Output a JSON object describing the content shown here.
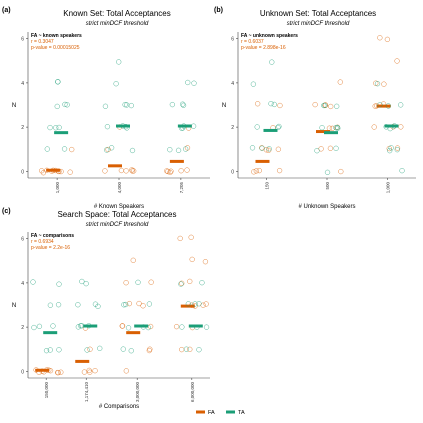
{
  "colors": {
    "FA": "#d95f02",
    "TA": "#1b9e77",
    "text_fa": "#d95f02",
    "panel_bg": "#ffffff",
    "axis": "#444444"
  },
  "legend": {
    "items": [
      "FA",
      "TA"
    ],
    "position": "bottom-center"
  },
  "chart_data": [
    {
      "type": "scatter",
      "panel_tag": "(a)",
      "title": "Known Set: Total Acceptances",
      "subtitle": "strict minDCF threshold",
      "xlabel": "# Known Speakers",
      "ylabel": "N",
      "categories": [
        "1,000",
        "4,000",
        "7,205"
      ],
      "ylim": [
        -0.3,
        6.3
      ],
      "yticks": [
        0,
        2,
        4,
        6
      ],
      "grid": false,
      "stats": {
        "header": "FA ~ known speakers",
        "r": "r = 0.3047",
        "p": "p-value = 0.00015025"
      },
      "series": [
        {
          "name": "FA",
          "points": [
            [
              0,
              0
            ],
            [
              0,
              0
            ],
            [
              0,
              0
            ],
            [
              0,
              0
            ],
            [
              0,
              0
            ],
            [
              0,
              0
            ],
            [
              0,
              0
            ],
            [
              0,
              0
            ],
            [
              0,
              0
            ],
            [
              0,
              0
            ],
            [
              0,
              1
            ],
            [
              1,
              0
            ],
            [
              1,
              0
            ],
            [
              1,
              0
            ],
            [
              1,
              0
            ],
            [
              1,
              0
            ],
            [
              1,
              0
            ],
            [
              1,
              1
            ],
            [
              1,
              2
            ],
            [
              2,
              0
            ],
            [
              2,
              0
            ],
            [
              2,
              0
            ],
            [
              2,
              0
            ],
            [
              2,
              0
            ],
            [
              2,
              0
            ],
            [
              2,
              1
            ],
            [
              2,
              2
            ]
          ],
          "means": [
            0.05,
            0.25,
            0.45
          ]
        },
        {
          "name": "TA",
          "points": [
            [
              0,
              1
            ],
            [
              0,
              1
            ],
            [
              0,
              2
            ],
            [
              0,
              2
            ],
            [
              0,
              2
            ],
            [
              0,
              3
            ],
            [
              0,
              3
            ],
            [
              0,
              3
            ],
            [
              0,
              4
            ],
            [
              0,
              4
            ],
            [
              1,
              1
            ],
            [
              1,
              1
            ],
            [
              1,
              1
            ],
            [
              1,
              2
            ],
            [
              1,
              2
            ],
            [
              1,
              2
            ],
            [
              1,
              2
            ],
            [
              1,
              3
            ],
            [
              1,
              3
            ],
            [
              1,
              3
            ],
            [
              1,
              3
            ],
            [
              1,
              4
            ],
            [
              1,
              5
            ],
            [
              2,
              1
            ],
            [
              2,
              1
            ],
            [
              2,
              1
            ],
            [
              2,
              2
            ],
            [
              2,
              2
            ],
            [
              2,
              2
            ],
            [
              2,
              2
            ],
            [
              2,
              3
            ],
            [
              2,
              3
            ],
            [
              2,
              3
            ],
            [
              2,
              4
            ],
            [
              2,
              4
            ]
          ],
          "means": [
            1.75,
            2.05,
            2.05
          ]
        }
      ]
    },
    {
      "type": "scatter",
      "panel_tag": "(b)",
      "title": "Unknown Set: Total Acceptances",
      "subtitle": "strict minDCF threshold",
      "xlabel": "# Unknown Speakers",
      "ylabel": "N",
      "categories": [
        "150",
        "500",
        "1,000"
      ],
      "ylim": [
        -0.3,
        6.3
      ],
      "yticks": [
        0,
        2,
        4,
        6
      ],
      "grid": false,
      "stats": {
        "header": "FA ~ unknown speakers",
        "r": "r = 0.6037",
        "p": "p-value = 2.898e-16"
      },
      "series": [
        {
          "name": "FA",
          "points": [
            [
              0,
              0
            ],
            [
              0,
              0
            ],
            [
              0,
              0
            ],
            [
              0,
              0
            ],
            [
              0,
              1
            ],
            [
              0,
              1
            ],
            [
              0,
              1
            ],
            [
              0,
              1
            ],
            [
              0,
              2
            ],
            [
              0,
              3
            ],
            [
              0,
              3
            ],
            [
              1,
              0
            ],
            [
              1,
              1
            ],
            [
              1,
              1
            ],
            [
              1,
              2
            ],
            [
              1,
              2
            ],
            [
              1,
              2
            ],
            [
              1,
              3
            ],
            [
              1,
              3
            ],
            [
              1,
              3
            ],
            [
              1,
              3
            ],
            [
              1,
              4
            ],
            [
              2,
              1
            ],
            [
              2,
              1
            ],
            [
              2,
              2
            ],
            [
              2,
              2
            ],
            [
              2,
              2
            ],
            [
              2,
              3
            ],
            [
              2,
              3
            ],
            [
              2,
              3
            ],
            [
              2,
              4
            ],
            [
              2,
              4
            ],
            [
              2,
              5
            ],
            [
              2,
              6
            ],
            [
              2,
              6
            ]
          ],
          "means": [
            0.45,
            1.8,
            2.95
          ]
        },
        {
          "name": "TA",
          "points": [
            [
              0,
              1
            ],
            [
              0,
              1
            ],
            [
              0,
              1
            ],
            [
              0,
              2
            ],
            [
              0,
              2
            ],
            [
              0,
              2
            ],
            [
              0,
              3
            ],
            [
              0,
              3
            ],
            [
              0,
              4
            ],
            [
              0,
              5
            ],
            [
              1,
              0
            ],
            [
              1,
              1
            ],
            [
              1,
              1
            ],
            [
              1,
              2
            ],
            [
              1,
              2
            ],
            [
              1,
              2
            ],
            [
              1,
              2
            ],
            [
              1,
              3
            ],
            [
              1,
              3
            ],
            [
              1,
              3
            ],
            [
              2,
              0
            ],
            [
              2,
              1
            ],
            [
              2,
              1
            ],
            [
              2,
              1
            ],
            [
              2,
              2
            ],
            [
              2,
              2
            ],
            [
              2,
              2
            ],
            [
              2,
              3
            ],
            [
              2,
              3
            ],
            [
              2,
              3
            ],
            [
              2,
              4
            ]
          ],
          "means": [
            1.85,
            1.75,
            2.05
          ]
        }
      ]
    },
    {
      "type": "scatter",
      "panel_tag": "(c)",
      "title": "Search Space: Total Acceptances",
      "subtitle": "strict minDCF threshold",
      "xlabel": "# Comparisons",
      "ylabel": "N",
      "categories": [
        "150,000",
        "1,174,410",
        "3,000,000",
        "6,000,000"
      ],
      "ylim": [
        -0.3,
        6.3
      ],
      "yticks": [
        0,
        2,
        4,
        6
      ],
      "grid": false,
      "stats": {
        "header": "FA ~ comparisons",
        "r": "r = 0.6934",
        "p": "p-value = 2.2e-16"
      },
      "series": [
        {
          "name": "FA",
          "points": [
            [
              0,
              0
            ],
            [
              0,
              0
            ],
            [
              0,
              0
            ],
            [
              0,
              0
            ],
            [
              0,
              0
            ],
            [
              0,
              0
            ],
            [
              0,
              0
            ],
            [
              0,
              0
            ],
            [
              0,
              0
            ],
            [
              0,
              0
            ],
            [
              1,
              0
            ],
            [
              1,
              0
            ],
            [
              1,
              0
            ],
            [
              1,
              0
            ],
            [
              1,
              1
            ],
            [
              1,
              2
            ],
            [
              2,
              0
            ],
            [
              2,
              1
            ],
            [
              2,
              1
            ],
            [
              2,
              2
            ],
            [
              2,
              2
            ],
            [
              2,
              2
            ],
            [
              2,
              3
            ],
            [
              2,
              3
            ],
            [
              2,
              3
            ],
            [
              2,
              4
            ],
            [
              2,
              4
            ],
            [
              2,
              5
            ],
            [
              3,
              1
            ],
            [
              3,
              1
            ],
            [
              3,
              2
            ],
            [
              3,
              2
            ],
            [
              3,
              3
            ],
            [
              3,
              3
            ],
            [
              3,
              3
            ],
            [
              3,
              3
            ],
            [
              3,
              4
            ],
            [
              3,
              4
            ],
            [
              3,
              5
            ],
            [
              3,
              5
            ],
            [
              3,
              6
            ],
            [
              3,
              6
            ]
          ],
          "means": [
            0.05,
            0.45,
            1.75,
            2.95
          ]
        },
        {
          "name": "TA",
          "points": [
            [
              0,
              1
            ],
            [
              0,
              1
            ],
            [
              0,
              1
            ],
            [
              0,
              2
            ],
            [
              0,
              2
            ],
            [
              0,
              2
            ],
            [
              0,
              3
            ],
            [
              0,
              3
            ],
            [
              0,
              4
            ],
            [
              0,
              4
            ],
            [
              1,
              1
            ],
            [
              1,
              1
            ],
            [
              1,
              2
            ],
            [
              1,
              2
            ],
            [
              1,
              2
            ],
            [
              1,
              2
            ],
            [
              1,
              3
            ],
            [
              1,
              3
            ],
            [
              1,
              3
            ],
            [
              1,
              4
            ],
            [
              1,
              4
            ],
            [
              2,
              1
            ],
            [
              2,
              1
            ],
            [
              2,
              2
            ],
            [
              2,
              2
            ],
            [
              2,
              2
            ],
            [
              2,
              3
            ],
            [
              2,
              3
            ],
            [
              2,
              3
            ],
            [
              2,
              4
            ],
            [
              3,
              1
            ],
            [
              3,
              1
            ],
            [
              3,
              2
            ],
            [
              3,
              2
            ],
            [
              3,
              2
            ],
            [
              3,
              3
            ],
            [
              3,
              3
            ],
            [
              3,
              3
            ],
            [
              3,
              4
            ],
            [
              3,
              4
            ]
          ],
          "means": [
            1.75,
            2.05,
            2.05,
            2.05
          ]
        }
      ]
    }
  ]
}
